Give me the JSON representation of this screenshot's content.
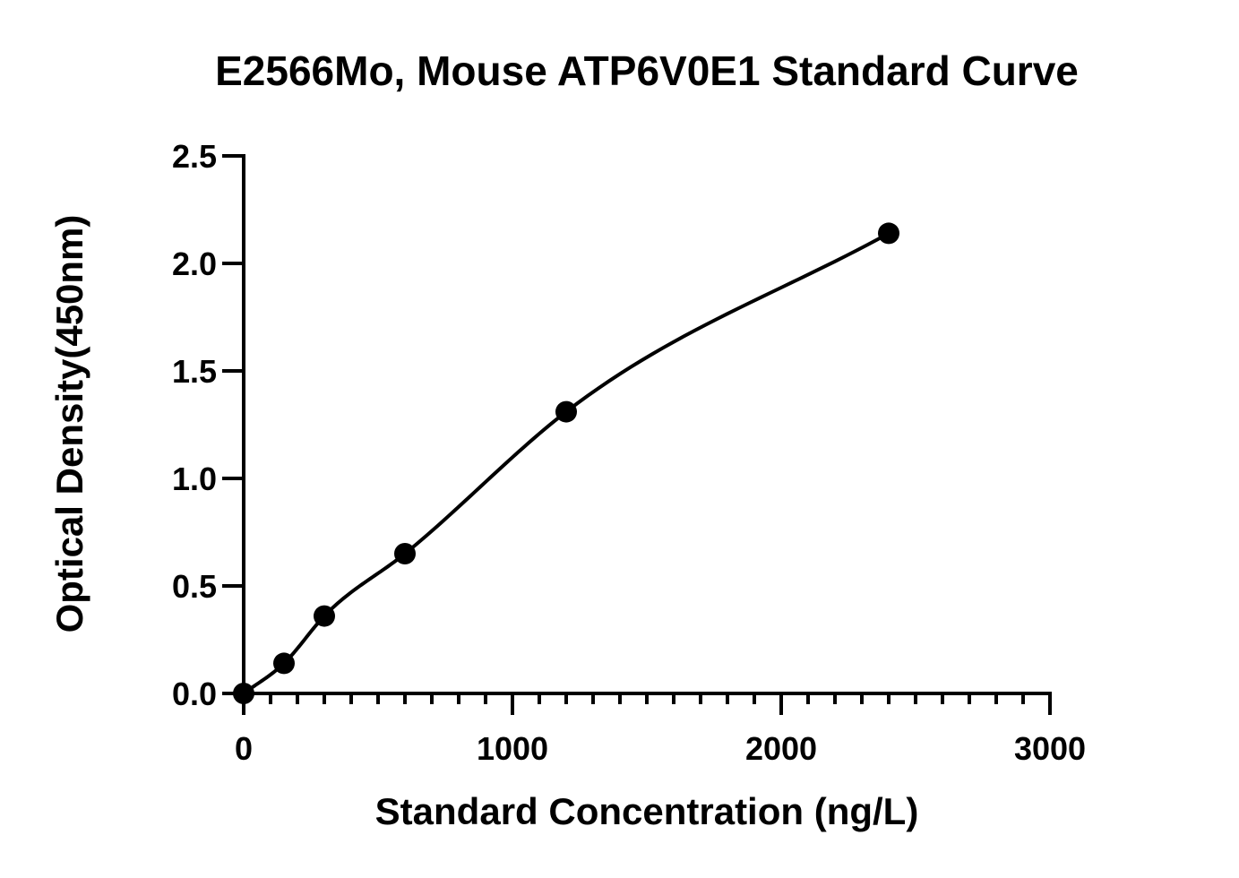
{
  "chart_data": {
    "type": "scatter",
    "title": "E2566Mo, Mouse ATP6V0E1 Standard Curve",
    "xlabel": "Standard Concentration (ng/L)",
    "ylabel": "Optical Density(450nm)",
    "xlim": [
      0,
      3000
    ],
    "ylim": [
      0,
      2.5
    ],
    "x_ticks": [
      0,
      1000,
      2000,
      3000
    ],
    "x_tick_labels": [
      "0",
      "1000",
      "2000",
      "3000"
    ],
    "x_minor_step": 100,
    "y_ticks": [
      0,
      0.5,
      1.0,
      1.5,
      2.0,
      2.5
    ],
    "y_tick_labels": [
      "0.0",
      "0.5",
      "1.0",
      "1.5",
      "2.0",
      "2.5"
    ],
    "grid": false,
    "legend": "none",
    "series": [
      {
        "points": [
          {
            "x": 0,
            "y": 0.0
          },
          {
            "x": 150,
            "y": 0.14
          },
          {
            "x": 300,
            "y": 0.36
          },
          {
            "x": 600,
            "y": 0.65
          },
          {
            "x": 1200,
            "y": 1.31
          },
          {
            "x": 2400,
            "y": 2.14
          }
        ],
        "fit": "curve",
        "color": "#000000"
      }
    ]
  }
}
